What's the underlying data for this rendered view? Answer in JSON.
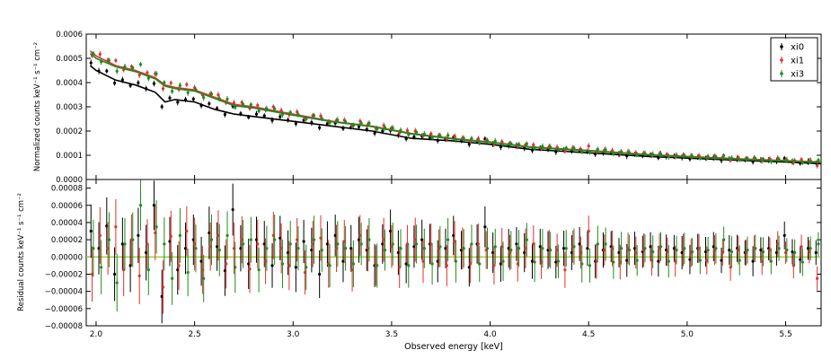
{
  "chart_data": [
    {
      "type": "scatter",
      "panel": "top",
      "title": "",
      "xlabel": "",
      "ylabel": "Normalized counts keV⁻¹ s⁻¹ cm⁻²",
      "xlim": [
        1.95,
        5.68
      ],
      "ylim": [
        0.0,
        0.0006
      ],
      "yticks": [
        "0.0000",
        "0.0001",
        "0.0002",
        "0.0003",
        "0.0004",
        "0.0005",
        "0.0006"
      ],
      "legend": {
        "placement": "top-right",
        "entries": [
          "xi0",
          "xi1",
          "xi3"
        ]
      },
      "series": [
        {
          "name": "xi0",
          "color": "#000000",
          "model_points": [
            [
              1.97,
              0.00047
            ],
            [
              2.0,
              0.00045
            ],
            [
              2.1,
              0.00041
            ],
            [
              2.2,
              0.00039
            ],
            [
              2.3,
              0.00036
            ],
            [
              2.35,
              0.00032
            ],
            [
              2.4,
              0.00033
            ],
            [
              2.5,
              0.00032
            ],
            [
              2.6,
              0.00029
            ],
            [
              2.7,
              0.00027
            ],
            [
              2.8,
              0.00026
            ],
            [
              3.0,
              0.00024
            ],
            [
              3.2,
              0.00022
            ],
            [
              3.4,
              0.0002
            ],
            [
              3.6,
              0.00017
            ],
            [
              3.8,
              0.00016
            ],
            [
              4.0,
              0.000145
            ],
            [
              4.2,
              0.000125
            ],
            [
              4.5,
              0.00011
            ],
            [
              4.8,
              9.5e-05
            ],
            [
              5.0,
              8.8e-05
            ],
            [
              5.3,
              7.8e-05
            ],
            [
              5.5,
              7.2e-05
            ],
            [
              5.68,
              6.5e-05
            ]
          ]
        },
        {
          "name": "xi1",
          "color": "#e03030",
          "model_points": [
            [
              1.97,
              0.00053
            ],
            [
              2.0,
              0.00051
            ],
            [
              2.1,
              0.00047
            ],
            [
              2.2,
              0.00045
            ],
            [
              2.3,
              0.00042
            ],
            [
              2.35,
              0.00039
            ],
            [
              2.4,
              0.00038
            ],
            [
              2.5,
              0.00037
            ],
            [
              2.6,
              0.00034
            ],
            [
              2.7,
              0.00031
            ],
            [
              2.8,
              0.0003
            ],
            [
              3.0,
              0.00027
            ],
            [
              3.2,
              0.00024
            ],
            [
              3.4,
              0.00022
            ],
            [
              3.6,
              0.00019
            ],
            [
              3.8,
              0.00017
            ],
            [
              4.0,
              0.000155
            ],
            [
              4.2,
              0.000135
            ],
            [
              4.5,
              0.00012
            ],
            [
              4.8,
              0.000103
            ],
            [
              5.0,
              9.5e-05
            ],
            [
              5.3,
              8.4e-05
            ],
            [
              5.5,
              7.8e-05
            ],
            [
              5.68,
              7.2e-05
            ]
          ]
        },
        {
          "name": "xi3",
          "color": "#1f8a1f",
          "model_points": [
            [
              1.97,
              0.00052
            ],
            [
              2.0,
              0.0005
            ],
            [
              2.1,
              0.000465
            ],
            [
              2.2,
              0.000445
            ],
            [
              2.3,
              0.000415
            ],
            [
              2.35,
              0.000385
            ],
            [
              2.4,
              0.000375
            ],
            [
              2.5,
              0.000365
            ],
            [
              2.6,
              0.000335
            ],
            [
              2.7,
              0.000305
            ],
            [
              2.8,
              0.000295
            ],
            [
              3.0,
              0.000265
            ],
            [
              3.2,
              0.000238
            ],
            [
              3.4,
              0.000218
            ],
            [
              3.6,
              0.000188
            ],
            [
              3.8,
              0.000168
            ],
            [
              4.0,
              0.000153
            ],
            [
              4.2,
              0.000133
            ],
            [
              4.5,
              0.000118
            ],
            [
              4.8,
              0.000101
            ],
            [
              5.0,
              9.3e-05
            ],
            [
              5.3,
              8.2e-05
            ],
            [
              5.5,
              7.6e-05
            ],
            [
              5.68,
              7e-05
            ]
          ]
        }
      ]
    },
    {
      "type": "scatter",
      "panel": "bottom",
      "title": "",
      "xlabel": "Observed energy [keV]",
      "ylabel": "Residual counts keV⁻¹ s⁻¹ cm⁻²",
      "xlim": [
        1.95,
        5.68
      ],
      "ylim": [
        -8e-05,
        9e-05
      ],
      "xticks": [
        "2.0",
        "2.5",
        "3.0",
        "3.5",
        "4.0",
        "4.5",
        "5.0",
        "5.5"
      ],
      "yticks": [
        "−0.00008",
        "−0.00006",
        "−0.00004",
        "−0.00002",
        "0.00000",
        "0.00002",
        "0.00004",
        "0.00006",
        "0.00008"
      ],
      "reference_line": {
        "y": 0,
        "color": "#9acd32"
      },
      "series": [
        {
          "name": "xi0",
          "color": "#000000",
          "residual_scatter_start": 3e-05,
          "residual_scatter_end": 1.2e-05
        },
        {
          "name": "xi1",
          "color": "#e03030",
          "residual_scatter_start": 3e-05,
          "residual_scatter_end": 1.2e-05
        },
        {
          "name": "xi3",
          "color": "#1f8a1f",
          "residual_scatter_start": 3e-05,
          "residual_scatter_end": 1.2e-05
        }
      ],
      "residual_data_points": {
        "x": [
          1.98,
          2.02,
          2.06,
          2.1,
          2.14,
          2.18,
          2.22,
          2.26,
          2.3,
          2.34,
          2.38,
          2.42,
          2.46,
          2.5,
          2.54,
          2.58,
          2.62,
          2.66,
          2.7,
          2.74,
          2.78,
          2.82,
          2.86,
          2.9,
          2.94,
          2.98,
          3.02,
          3.06,
          3.1,
          3.14,
          3.18,
          3.22,
          3.26,
          3.3,
          3.34,
          3.38,
          3.42,
          3.46,
          3.5,
          3.54,
          3.58,
          3.62,
          3.66,
          3.7,
          3.74,
          3.78,
          3.82,
          3.86,
          3.9,
          3.94,
          3.98,
          4.02,
          4.06,
          4.1,
          4.14,
          4.18,
          4.22,
          4.26,
          4.3,
          4.34,
          4.38,
          4.42,
          4.46,
          4.5,
          4.54,
          4.58,
          4.62,
          4.66,
          4.7,
          4.74,
          4.78,
          4.82,
          4.86,
          4.9,
          4.94,
          4.98,
          5.02,
          5.06,
          5.1,
          5.14,
          5.18,
          5.22,
          5.26,
          5.3,
          5.34,
          5.38,
          5.42,
          5.46,
          5.5,
          5.54,
          5.58,
          5.62,
          5.66
        ],
        "xi0": [
          3e-05,
          1e-05,
          3.6e-05,
          -2e-05,
          1.5e-05,
          -1e-05,
          2.5e-05,
          5e-06,
          6e-05,
          -4.6e-05,
          1.8e-05,
          -1.5e-05,
          1e-05,
          2e-05,
          -5e-06,
          2.8e-05,
          1.2e-05,
          -1.6e-05,
          5.5e-05,
          1e-05,
          -8e-06,
          2e-05,
          1.5e-05,
          -1e-05,
          2.2e-05,
          5e-06,
          -1.2e-05,
          1.8e-05,
          8e-06,
          -2e-05,
          1.5e-05,
          2.5e-05,
          -5e-06,
          1e-05,
          2e-05,
          8e-06,
          -1e-05,
          1.5e-05,
          3e-05,
          5e-06,
          -8e-06,
          1.2e-05,
          2e-05,
          1.5e-05,
          -5e-06,
          1e-05,
          2.5e-05,
          8e-06,
          -1.2e-05,
          1.5e-05,
          3.5e-05,
          5e-06,
          -8e-06,
          1e-05,
          1.5e-05,
          5e-06,
          -5e-06,
          1.2e-05,
          8e-06,
          -6e-06,
          1e-05,
          5e-06,
          1.5e-05,
          1e-05,
          -5e-06,
          8e-06,
          1.2e-05,
          5e-06,
          -4e-06,
          1e-05,
          6e-06,
          1.2e-05,
          -5e-06,
          8e-06,
          1e-05,
          5e-06,
          -3e-06,
          1e-05,
          6e-06,
          1.2e-05,
          -4e-06,
          8e-06,
          1e-05,
          5e-06,
          -5e-06,
          8e-06,
          1e-05,
          5e-06,
          2.5e-05,
          6e-06,
          -3e-06,
          1e-05,
          5e-06
        ],
        "xi1": [
          -2e-05,
          2.5e-05,
          1e-05,
          3.5e-05,
          -1.5e-05,
          2e-05,
          -2.2e-05,
          1.5e-05,
          2.8e-05,
          -3.5e-05,
          2.4e-05,
          -1e-05,
          3e-05,
          1.5e-05,
          -1.5e-05,
          1.2e-05,
          2.5e-05,
          -8e-06,
          1e-05,
          2e-05,
          -1.4e-05,
          1.5e-05,
          -5e-06,
          2.5e-05,
          1e-05,
          -1e-05,
          2e-05,
          -1.8e-05,
          1.5e-05,
          2.2e-05,
          -8e-06,
          1e-05,
          1.8e-05,
          -1.5e-05,
          2.5e-05,
          1e-05,
          -1e-05,
          2e-05,
          1.2e-05,
          -1.2e-05,
          1.5e-05,
          2e-05,
          -5e-06,
          1.5e-05,
          1e-05,
          -1e-05,
          1.8e-05,
          1e-05,
          -8e-06,
          1.5e-05,
          8e-06,
          -1e-05,
          1.2e-05,
          5e-06,
          -8e-06,
          1e-05,
          1.5e-05,
          -6e-06,
          1e-05,
          8e-06,
          -1.5e-05,
          1.2e-05,
          5e-06,
          3e-05,
          -5e-06,
          8e-06,
          1e-05,
          -6e-06,
          1e-05,
          5e-06,
          8e-06,
          -4e-06,
          1e-05,
          6e-06,
          -5e-06,
          8e-06,
          5e-06,
          1e-05,
          -4e-06,
          8e-06,
          5e-06,
          -1.2e-05,
          8e-06,
          5e-06,
          1e-05,
          -5e-06,
          8e-06,
          1.5e-05,
          5e-06,
          -1e-05,
          1.2e-05,
          6e-06,
          -2.5e-05
        ],
        "xi3": [
          1e-05,
          -1.2e-05,
          2e-05,
          -3e-05,
          1.5e-05,
          2e-05,
          6e-05,
          -1.5e-05,
          3.5e-05,
          1.5e-05,
          -2.5e-05,
          2.5e-05,
          -1.8e-05,
          1e-05,
          -2.5e-05,
          2e-05,
          8e-06,
          2.5e-05,
          -1.2e-05,
          1.5e-05,
          2e-05,
          -1.5e-05,
          1e-05,
          2e-05,
          -8e-06,
          1.5e-05,
          1e-05,
          -1.2e-05,
          2e-05,
          8e-06,
          -1e-05,
          1.5e-05,
          1e-05,
          -8e-06,
          1.5e-05,
          2e-05,
          -1e-05,
          8e-06,
          1.5e-05,
          1e-05,
          -1e-05,
          1.5e-05,
          1e-05,
          -8e-06,
          1.2e-05,
          2e-05,
          -5e-06,
          1e-05,
          1.5e-05,
          -8e-06,
          1e-05,
          1.2e-05,
          -5e-06,
          8e-06,
          1e-05,
          2e-05,
          -6e-06,
          1e-05,
          8e-06,
          -5e-06,
          1e-05,
          1.2e-05,
          -8e-06,
          -1e-05,
          1.5e-05,
          1.5e-05,
          -6e-06,
          1e-05,
          8e-06,
          -4e-06,
          1e-05,
          6e-06,
          1.2e-05,
          -5e-06,
          8e-06,
          1e-05,
          6e-06,
          -4e-06,
          8e-06,
          1e-05,
          2e-05,
          6e-06,
          -4e-06,
          8e-06,
          1e-05,
          6e-06,
          -5e-06,
          1e-05,
          8e-06,
          5e-06,
          -6e-06,
          1e-05,
          1.5e-05
        ]
      }
    }
  ]
}
